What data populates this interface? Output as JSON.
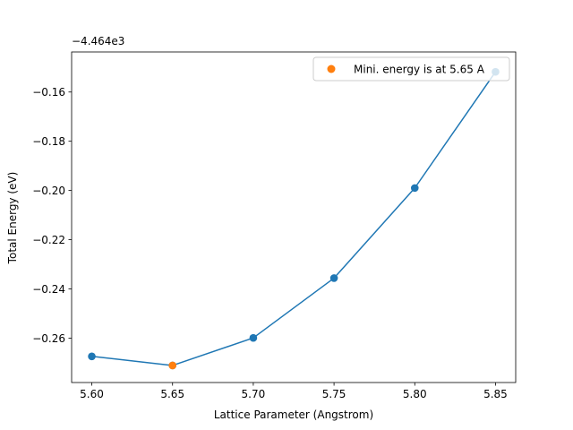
{
  "chart_data": {
    "type": "line",
    "xlabel": "Lattice Parameter (Angstrom)",
    "ylabel": "Total Energy (eV)",
    "offset_text": "−4.464e3",
    "xlim": [
      5.5875,
      5.8625
    ],
    "ylim": [
      -0.27803,
      -0.14372
    ],
    "x_ticks": [
      "5.60",
      "5.65",
      "5.70",
      "5.75",
      "5.80",
      "5.85"
    ],
    "y_ticks": [
      "−0.26",
      "−0.24",
      "−0.22",
      "−0.20",
      "−0.18",
      "−0.16"
    ],
    "grid": false,
    "legend_position": "top-right",
    "series": [
      {
        "x": [
          5.6,
          5.65,
          5.7,
          5.75,
          5.8,
          5.85
        ],
        "y": [
          -0.2674,
          -0.2711,
          -0.2599,
          -0.2356,
          -0.199,
          -0.1518
        ],
        "color": "#1f77b4"
      },
      {
        "name": "Mini. energy is at 5.65 A",
        "x": [
          5.65
        ],
        "y": [
          -0.2711
        ],
        "color": "#ff7f0e"
      }
    ]
  }
}
